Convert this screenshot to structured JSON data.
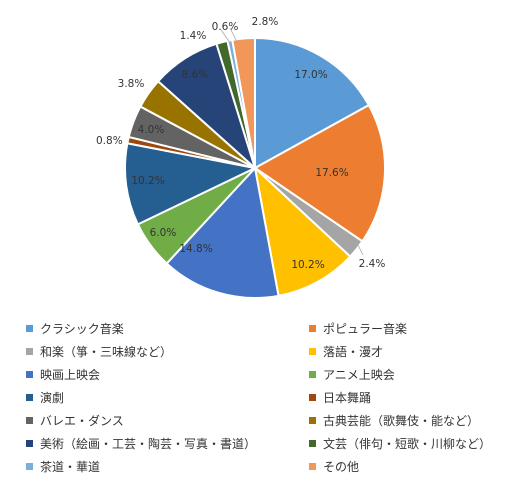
{
  "chart_data": {
    "type": "pie",
    "title": "",
    "start_angle_deg": 0,
    "direction": "clockwise",
    "legend_position": "bottom",
    "slices": [
      {
        "label": "クラシック音楽",
        "value": 17.0,
        "value_label": "17.0%",
        "color": "#5B9BD5"
      },
      {
        "label": "ポピュラー音楽",
        "value": 17.6,
        "value_label": "17.6%",
        "color": "#ED7D31"
      },
      {
        "label": "和楽（箏・三味線など）",
        "value": 2.4,
        "value_label": "2.4%",
        "color": "#A5A5A5"
      },
      {
        "label": "落語・漫才",
        "value": 10.2,
        "value_label": "10.2%",
        "color": "#FFC000"
      },
      {
        "label": "映画上映会",
        "value": 14.8,
        "value_label": "14.8%",
        "color": "#4472C4"
      },
      {
        "label": "アニメ上映会",
        "value": 6.0,
        "value_label": "6.0%",
        "color": "#70AD47"
      },
      {
        "label": "演劇",
        "value": 10.2,
        "value_label": "10.2%",
        "color": "#255E91"
      },
      {
        "label": "日本舞踊",
        "value": 0.8,
        "value_label": "0.8%",
        "color": "#9E480E"
      },
      {
        "label": "バレエ・ダンス",
        "value": 4.0,
        "value_label": "4.0%",
        "color": "#636363"
      },
      {
        "label": "古典芸能（歌舞伎・能など）",
        "value": 3.8,
        "value_label": "3.8%",
        "color": "#997300"
      },
      {
        "label": "美術（絵画・工芸・陶芸・写真・書道）",
        "value": 8.6,
        "value_label": "8.6%",
        "color": "#264478"
      },
      {
        "label": "文芸（俳句・短歌・川柳など）",
        "value": 1.4,
        "value_label": "1.4%",
        "color": "#43682B"
      },
      {
        "label": "茶道・華道",
        "value": 0.6,
        "value_label": "0.6%",
        "color": "#7CAFDD"
      },
      {
        "label": "その他",
        "value": 2.8,
        "value_label": "2.8%",
        "color": "#F1975A"
      }
    ]
  }
}
